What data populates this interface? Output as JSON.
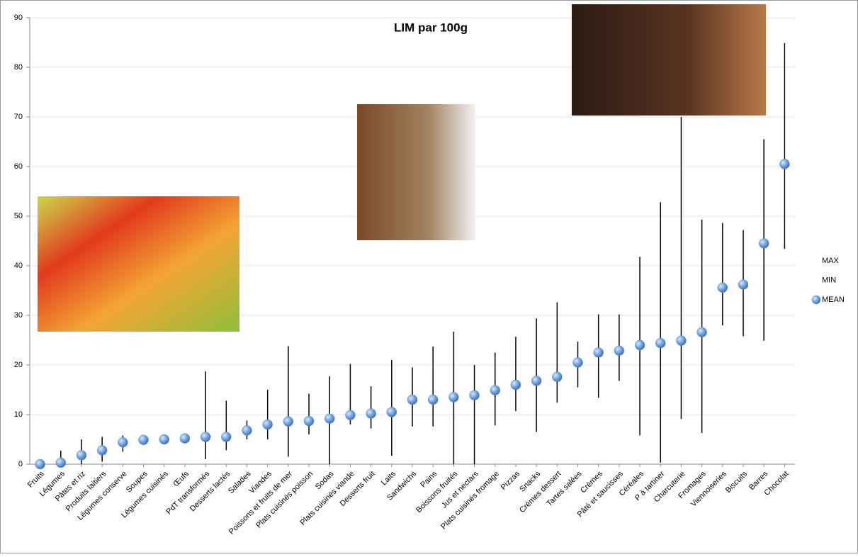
{
  "chart_data": {
    "type": "high-low-mean",
    "title": "LIM par 100g",
    "categories": [
      "Fruits",
      "Légumes",
      "Pâtes et riz",
      "Produits laitiers",
      "Légumes conserve",
      "Soupes",
      "Légumes cuisinés",
      "Œufs",
      "PdT transformés",
      "Desserts lactés",
      "Salades",
      "Viandes",
      "Poissons et fruits de mer",
      "Plats cuisinés poisson",
      "Sodas",
      "Plats cuisinés viande",
      "Desserts fruit",
      "Laits",
      "Sandwichs",
      "Pains",
      "Boissons fruités",
      "Jus et nectars",
      "Plats cuisinés fromage",
      "Pizzas",
      "Snacks",
      "Crèmes dessert",
      "Tartes salées",
      "Crèmes",
      "Pâté et saucisses",
      "Céréales",
      "P à tartiner",
      "Charcuterie",
      "Fromages",
      "Viennoiseries",
      "Biscuits",
      "Barres",
      "Chocolat"
    ],
    "series": [
      {
        "name": "MAX",
        "color": "#000000",
        "values": [
          0,
          2.7,
          5,
          5.5,
          5.8,
          4.9,
          5,
          5.2,
          18.7,
          12.8,
          8.8,
          15,
          23.8,
          14.2,
          17.7,
          20.2,
          15.7,
          21,
          19.5,
          23.7,
          26.7,
          20,
          22.5,
          25.7,
          29.4,
          32.6,
          24.7,
          30.2,
          30.2,
          41.8,
          52.8,
          70,
          49.3,
          48.6,
          47.2,
          65.5,
          84.9
        ]
      },
      {
        "name": "MIN",
        "color": "#000000",
        "values": [
          0,
          0,
          0,
          0.5,
          2.5,
          4.9,
          5,
          5.2,
          1,
          2.8,
          5,
          5,
          1.5,
          6,
          0,
          8,
          7.2,
          1.7,
          7.6,
          7.6,
          0,
          0,
          7.8,
          10.7,
          6.5,
          12.4,
          15.5,
          13.4,
          16.8,
          5.8,
          0.3,
          9.1,
          6.3,
          28,
          25.8,
          24.9,
          43.4
        ]
      },
      {
        "name": "MEAN",
        "color": "#5b8fd6",
        "values": [
          0,
          0.3,
          1.8,
          2.8,
          4.4,
          4.9,
          5,
          5.2,
          5.5,
          5.5,
          6.8,
          8,
          8.6,
          8.7,
          9.2,
          9.9,
          10.2,
          10.5,
          13,
          13,
          13.5,
          13.9,
          14.9,
          16,
          16.8,
          17.6,
          20.5,
          22.5,
          22.9,
          24,
          24.4,
          24.9,
          26.6,
          35.6,
          36.2,
          44.5,
          60.5
        ]
      }
    ],
    "ylim": [
      0,
      90
    ],
    "yticks": [
      0,
      10,
      20,
      30,
      40,
      50,
      60,
      70,
      80,
      90
    ],
    "grid": true
  }
}
